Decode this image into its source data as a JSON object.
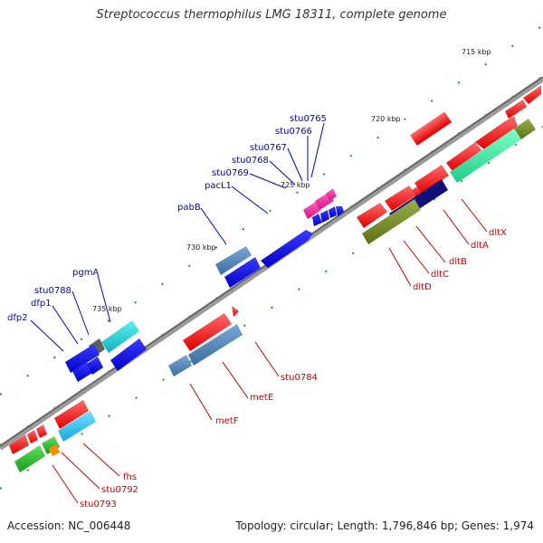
{
  "title": "Streptococcus thermophilus LMG 18311, complete genome",
  "footer": {
    "accession": "Accession: NC_006448",
    "info": "Topology: circular; Length: 1,796,846 bp; Genes: 1,974"
  },
  "ticks": [
    "715 kbp",
    "720 kbp",
    "725 kbp",
    "730 kbp",
    "735 kbp"
  ],
  "labels_blue": [
    "stu0765",
    "stu0766",
    "stu0767",
    "stu0768",
    "stu0769",
    "pacL1",
    "pabB",
    "pgmA",
    "stu0788",
    "dfp1",
    "dfp2"
  ],
  "labels_red": [
    "dltX",
    "dltA",
    "dltB",
    "dltC",
    "dltD",
    "stu0784",
    "metE",
    "metF",
    "fhs",
    "stu0792",
    "stu0793"
  ],
  "colors": {
    "backbone": "#888888",
    "forward_label": "#0000cc",
    "reverse_label": "#cc0000",
    "tick_mark": "#2e8b2e"
  }
}
